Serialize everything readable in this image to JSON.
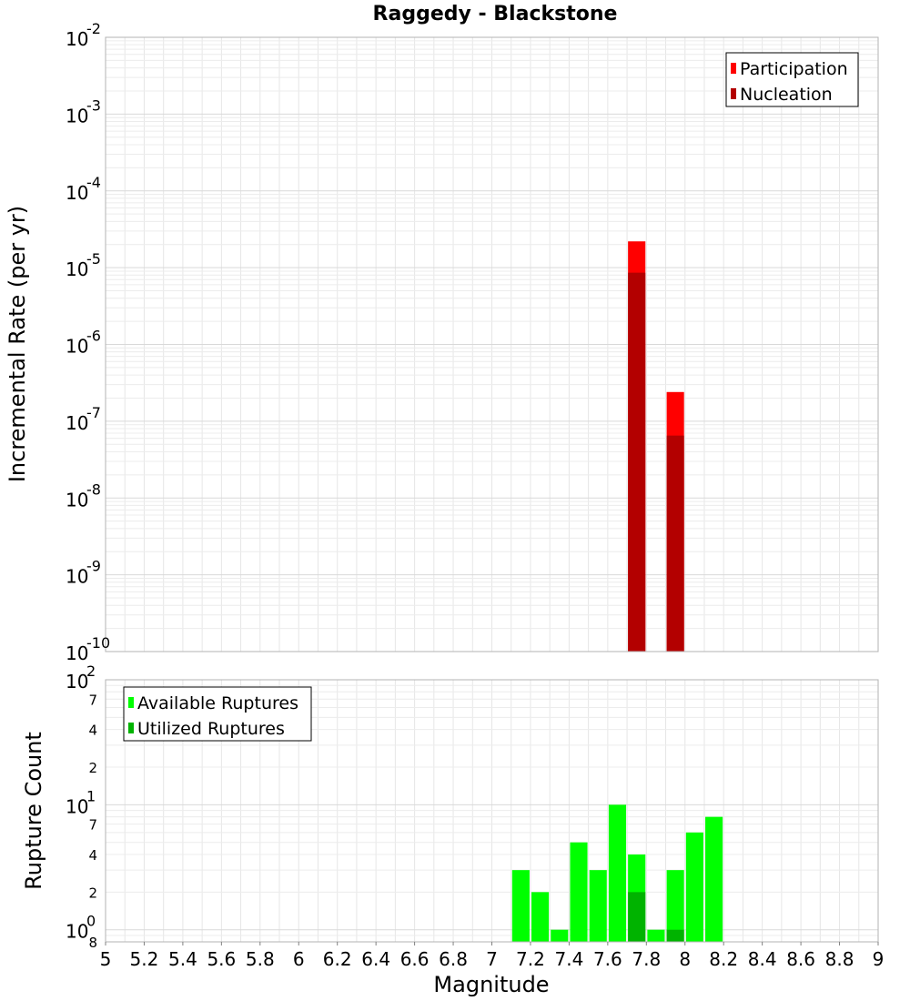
{
  "chart_data": [
    {
      "type": "bar",
      "title": "Raggedy - Blackstone",
      "ylabel": "Incremental Rate (per yr)",
      "xlim": [
        5,
        9
      ],
      "ylim": [
        1e-10,
        0.01
      ],
      "yscale": "log",
      "grid": true,
      "legend_position": "top-right",
      "y_tick_base": "10",
      "y_tick_exponents": [
        "-2",
        "-3",
        "-4",
        "-5",
        "-6",
        "-7",
        "-8",
        "-9",
        "-10"
      ],
      "bar_width": 0.09,
      "series": [
        {
          "name": "Participation",
          "color": "#ff0000",
          "x": [
            7.75,
            7.95
          ],
          "values": [
            2.2e-05,
            2.4e-07
          ]
        },
        {
          "name": "Nucleation",
          "color": "#b30000",
          "x": [
            7.75,
            7.95
          ],
          "values": [
            8.6e-06,
            6.5e-08
          ]
        }
      ]
    },
    {
      "type": "bar",
      "ylabel": "Rupture Count",
      "xlabel": "Magnitude",
      "xlim": [
        5,
        9
      ],
      "ylim": [
        0.8,
        100
      ],
      "yscale": "log",
      "grid": true,
      "legend_position": "top-left",
      "x_ticks": [
        "5",
        "5.2",
        "5.4",
        "5.6",
        "5.8",
        "6",
        "6.2",
        "6.4",
        "6.6",
        "6.8",
        "7",
        "7.2",
        "7.4",
        "7.6",
        "7.8",
        "8",
        "8.2",
        "8.4",
        "8.6",
        "8.8",
        "9"
      ],
      "y_tick_base": "10",
      "y_tick_exponents": [
        "2",
        "1",
        "0"
      ],
      "y_minor_ticks": [
        "7",
        "4",
        "2",
        "7",
        "4",
        "2",
        "8"
      ],
      "bar_width": 0.09,
      "series": [
        {
          "name": "Available Ruptures",
          "color": "#00ff00",
          "x": [
            7.15,
            7.25,
            7.35,
            7.45,
            7.55,
            7.65,
            7.75,
            7.85,
            7.95,
            8.05,
            8.15
          ],
          "values": [
            3,
            2,
            1,
            5,
            3,
            10,
            4,
            1,
            3,
            6,
            8
          ]
        },
        {
          "name": "Utilized Ruptures",
          "color": "#00b300",
          "x": [
            7.75,
            7.95
          ],
          "values": [
            2,
            1
          ]
        }
      ]
    }
  ]
}
